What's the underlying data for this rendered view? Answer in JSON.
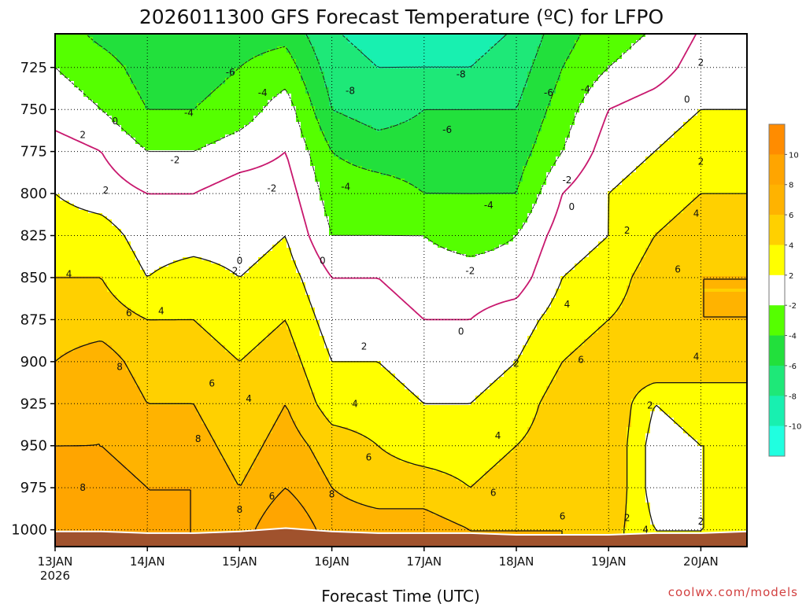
{
  "chart_data": {
    "type": "heatmap",
    "title": "2026011300 GFS Forecast Temperature (ºC) for LFPO",
    "xlabel": "Forecast Time (UTC)",
    "credit": "coolwx.com/models",
    "x_ticks": [
      {
        "label": "13JAN",
        "sub": "2026",
        "day": 0
      },
      {
        "label": "14JAN",
        "day": 1
      },
      {
        "label": "15JAN",
        "day": 2
      },
      {
        "label": "16JAN",
        "day": 3
      },
      {
        "label": "17JAN",
        "day": 4
      },
      {
        "label": "18JAN",
        "day": 5
      },
      {
        "label": "19JAN",
        "day": 6
      },
      {
        "label": "20JAN",
        "day": 7
      }
    ],
    "xlim_days": [
      0,
      7.5
    ],
    "y_axis": {
      "ticks": [
        725,
        750,
        775,
        800,
        825,
        850,
        875,
        900,
        925,
        950,
        975,
        1000
      ],
      "ylim": [
        705,
        1010
      ],
      "units": "hPa",
      "inverted": true
    },
    "grid": true,
    "colorbar": {
      "labels": [
        "10",
        "8",
        "6",
        "4",
        "2",
        "-2",
        "-4",
        "-6",
        "-8",
        "-10"
      ],
      "colors": [
        "#ff8c00",
        "#ffa500",
        "#ffb300",
        "#ffd000",
        "#ffff00",
        "#ffffff",
        "#55ff00",
        "#22e03c",
        "#1ee878",
        "#18f0b0",
        "#20ffe0"
      ]
    },
    "temperature_levels": [
      -8,
      -6,
      -4,
      -2,
      0,
      2,
      4,
      6,
      8
    ],
    "profile": {
      "levels_hpa": [
        700,
        725,
        750,
        775,
        800,
        825,
        850,
        875,
        900,
        925,
        950,
        975,
        1000
      ],
      "days": [
        0,
        0.5,
        1,
        1.5,
        2,
        2.5,
        3,
        3.5,
        4,
        4.5,
        5,
        5.5,
        6,
        6.5,
        7,
        7.5
      ],
      "temperature_c": [
        [
          -3,
          -5,
          -6,
          -6,
          -5,
          -5,
          -8,
          -9,
          -9,
          -9,
          -8,
          -5,
          -3,
          -2,
          0,
          1
        ],
        [
          -2,
          -3,
          -5,
          -5,
          -4,
          -3,
          -7,
          -8,
          -8,
          -8,
          -7,
          -4,
          -2,
          -1,
          1,
          1
        ],
        [
          -1,
          -2,
          -4,
          -4,
          -3,
          -1,
          -6,
          -7,
          -6,
          -6,
          -6,
          -3,
          0,
          1,
          2,
          2
        ],
        [
          1,
          0,
          -2,
          -2,
          -1,
          0,
          -4,
          -5,
          -5,
          -5,
          -5,
          -2,
          1,
          2,
          3,
          3
        ],
        [
          2,
          1,
          0,
          0,
          1,
          1,
          -3,
          -3,
          -4,
          -4,
          -4,
          0,
          2,
          3,
          4,
          4
        ],
        [
          3,
          3,
          1,
          1,
          1,
          2,
          -2,
          -2,
          -2,
          -3,
          -2,
          1,
          2,
          4,
          5,
          5
        ],
        [
          4,
          4,
          2,
          3,
          2,
          3,
          0,
          0,
          -1,
          -1,
          -1,
          2,
          3,
          5,
          6,
          6
        ],
        [
          5,
          5,
          4,
          4,
          3,
          4,
          1,
          1,
          0,
          0,
          1,
          3,
          4,
          5,
          6,
          6
        ],
        [
          6,
          7,
          5,
          5,
          4,
          5,
          2,
          2,
          1,
          1,
          2,
          4,
          5,
          6,
          5,
          5
        ],
        [
          7,
          8,
          6,
          6,
          4,
          6,
          3,
          3,
          2,
          2,
          3,
          5,
          6,
          2,
          3,
          3
        ],
        [
          8,
          8,
          7,
          7,
          5,
          7,
          5,
          4,
          3,
          3,
          4,
          5,
          6,
          1,
          2,
          2
        ],
        [
          8,
          9,
          8,
          8,
          6,
          8,
          6,
          5,
          5,
          4,
          5,
          6,
          6,
          1,
          2,
          2
        ],
        [
          9,
          10,
          8,
          8,
          7,
          10,
          7,
          7,
          7,
          6,
          6,
          6,
          5,
          2,
          2,
          2
        ]
      ]
    },
    "surface_pressure_hpa": [
      1001,
      1001,
      1002,
      1002,
      1001,
      999,
      1001,
      1002,
      1002,
      1002,
      1003,
      1003,
      1003,
      1002,
      1002,
      1001
    ],
    "contour_labels": [
      {
        "text": "-6",
        "day": 1.9,
        "p": 728
      },
      {
        "text": "-4",
        "day": 2.25,
        "p": 740
      },
      {
        "text": "-8",
        "day": 3.2,
        "p": 739
      },
      {
        "text": "-8",
        "day": 4.4,
        "p": 729
      },
      {
        "text": "-6",
        "day": 4.25,
        "p": 762
      },
      {
        "text": "-6",
        "day": 5.35,
        "p": 740
      },
      {
        "text": "-4",
        "day": 5.75,
        "p": 738
      },
      {
        "text": "-4",
        "day": 1.45,
        "p": 752
      },
      {
        "text": "-4",
        "day": 3.15,
        "p": 796
      },
      {
        "text": "-4",
        "day": 4.7,
        "p": 807
      },
      {
        "text": "-2",
        "day": 1.3,
        "p": 780
      },
      {
        "text": "-2",
        "day": 2.35,
        "p": 797
      },
      {
        "text": "-2",
        "day": 5.55,
        "p": 792
      },
      {
        "text": "-2",
        "day": 4.5,
        "p": 846
      },
      {
        "text": "2",
        "day": 0.3,
        "p": 765
      },
      {
        "text": "0",
        "day": 0.65,
        "p": 757
      },
      {
        "text": "2",
        "day": 7.0,
        "p": 722
      },
      {
        "text": "0",
        "day": 6.85,
        "p": 744
      },
      {
        "text": "2",
        "day": 0.55,
        "p": 798
      },
      {
        "text": "2",
        "day": 7.0,
        "p": 781
      },
      {
        "text": "0",
        "day": 2.0,
        "p": 840
      },
      {
        "text": "0",
        "day": 2.9,
        "p": 840
      },
      {
        "text": "0",
        "day": 5.6,
        "p": 808
      },
      {
        "text": "2",
        "day": 6.2,
        "p": 822
      },
      {
        "text": "0",
        "day": 4.4,
        "p": 882
      },
      {
        "text": "4",
        "day": 0.15,
        "p": 848
      },
      {
        "text": "4",
        "day": 1.15,
        "p": 870
      },
      {
        "text": "4",
        "day": 6.95,
        "p": 812
      },
      {
        "text": "2",
        "day": 1.95,
        "p": 846
      },
      {
        "text": "2",
        "day": 3.35,
        "p": 891
      },
      {
        "text": "2",
        "day": 5.0,
        "p": 901
      },
      {
        "text": "6",
        "day": 0.8,
        "p": 871
      },
      {
        "text": "4",
        "day": 5.55,
        "p": 866
      },
      {
        "text": "6",
        "day": 6.75,
        "p": 845
      },
      {
        "text": "6",
        "day": 1.7,
        "p": 913
      },
      {
        "text": "4",
        "day": 2.1,
        "p": 922
      },
      {
        "text": "4",
        "day": 3.25,
        "p": 925
      },
      {
        "text": "6",
        "day": 5.7,
        "p": 899
      },
      {
        "text": "4",
        "day": 6.95,
        "p": 897
      },
      {
        "text": "8",
        "day": 0.7,
        "p": 903
      },
      {
        "text": "2",
        "day": 6.45,
        "p": 926
      },
      {
        "text": "8",
        "day": 1.55,
        "p": 946
      },
      {
        "text": "4",
        "day": 4.8,
        "p": 944
      },
      {
        "text": "6",
        "day": 3.4,
        "p": 957
      },
      {
        "text": "8",
        "day": 0.3,
        "p": 975
      },
      {
        "text": "6",
        "day": 2.35,
        "p": 980
      },
      {
        "text": "8",
        "day": 3.0,
        "p": 979
      },
      {
        "text": "8",
        "day": 2.0,
        "p": 988
      },
      {
        "text": "6",
        "day": 4.75,
        "p": 978
      },
      {
        "text": "6",
        "day": 5.5,
        "p": 992
      },
      {
        "text": "2",
        "day": 6.2,
        "p": 993
      },
      {
        "text": "4",
        "day": 6.4,
        "p": 1000
      },
      {
        "text": "2",
        "day": 7.0,
        "p": 995
      }
    ]
  }
}
